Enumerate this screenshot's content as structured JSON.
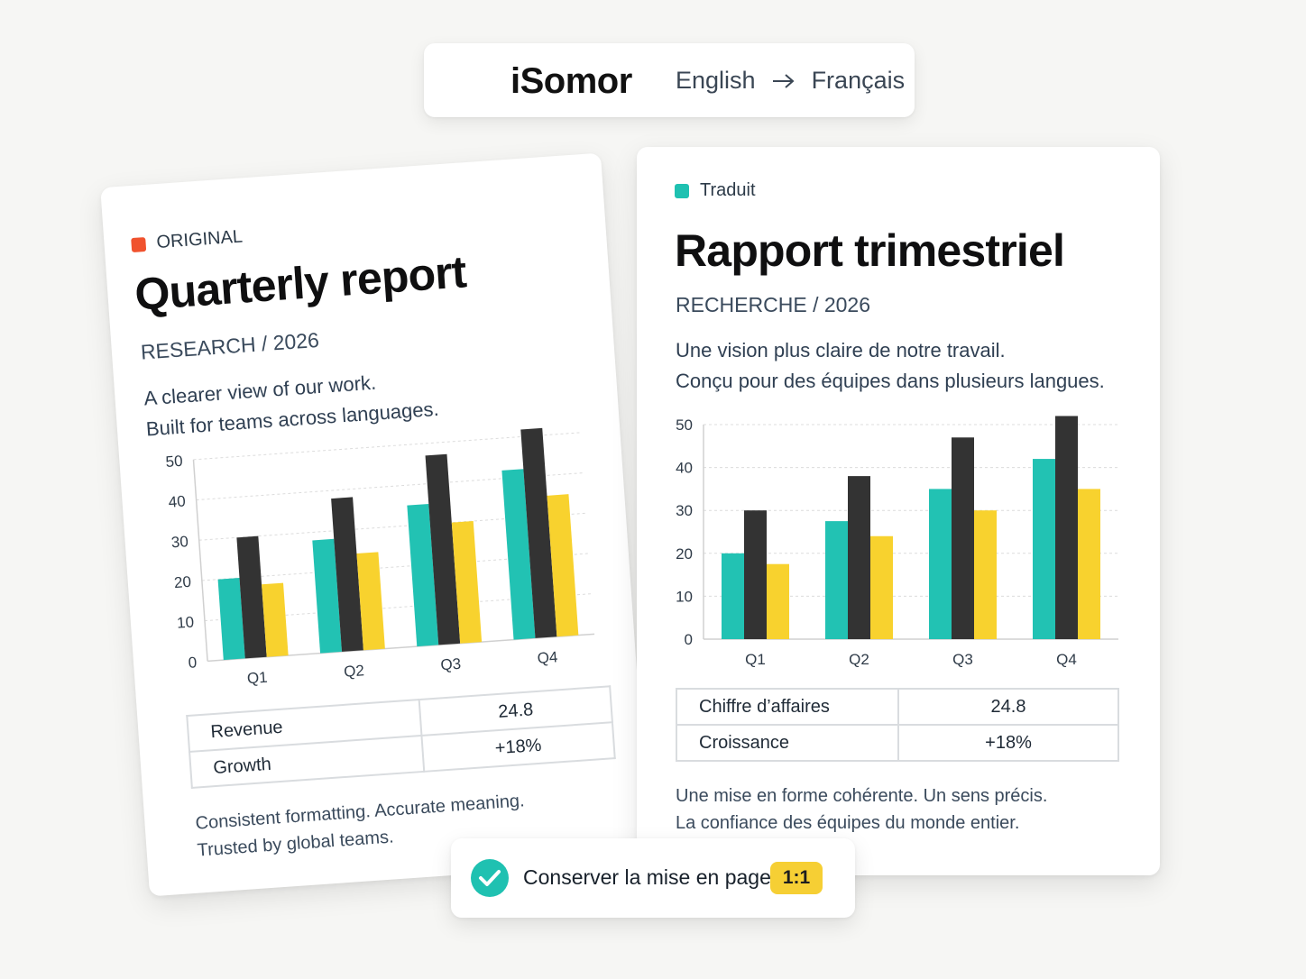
{
  "header": {
    "brand": "iSomor",
    "source_language": "English",
    "target_language": "Français",
    "arrow_icon": "arrow-right-icon"
  },
  "colors": {
    "teal": "#22c2b3",
    "dark": "#333333",
    "yellow": "#f8d22e",
    "original_tag": "#f0522e",
    "translated_tag": "#1fc1b1"
  },
  "original": {
    "tag": "ORIGINAL",
    "title": "Quarterly report",
    "subtitle": "RESEARCH / 2026",
    "desc_line1": "A clearer view of our work.",
    "desc_line2": "Built for teams across languages.",
    "table": [
      {
        "label": "Revenue",
        "value": "24.8"
      },
      {
        "label": "Growth",
        "value": "+18%"
      }
    ],
    "foot_line1": "Consistent formatting. Accurate meaning.",
    "foot_line2": "Trusted by global teams."
  },
  "translated": {
    "tag": "Traduit",
    "title": "Rapport trimestriel",
    "subtitle": "RECHERCHE / 2026",
    "desc_line1": "Une vision plus claire de notre travail.",
    "desc_line2": "Conçu pour des équipes dans plusieurs langues.",
    "table": [
      {
        "label": "Chiffre d’affaires",
        "value": "24.8"
      },
      {
        "label": "Croissance",
        "value": "+18%"
      }
    ],
    "foot_line1": "Une mise en forme cohérente. Un sens précis.",
    "foot_line2": "La confiance des équipes du monde entier."
  },
  "keep_layout": {
    "label": "Conserver la mise en page",
    "ratio": "1:1",
    "check_icon": "check-circle-icon"
  },
  "chart_data": [
    {
      "type": "bar",
      "categories": [
        "Q1",
        "Q2",
        "Q3",
        "Q4"
      ],
      "series": [
        {
          "values": [
            20,
            28,
            35,
            42
          ]
        },
        {
          "values": [
            30,
            38,
            47,
            52
          ]
        },
        {
          "values": [
            18,
            24,
            30,
            35
          ]
        }
      ],
      "ylim": [
        0,
        50
      ],
      "yticks": [
        0,
        10,
        20,
        30,
        40,
        50
      ],
      "grid": true
    },
    {
      "type": "bar",
      "categories": [
        "Q1",
        "Q2",
        "Q3",
        "Q4"
      ],
      "series": [
        {
          "values": [
            20,
            27.5,
            35,
            42
          ]
        },
        {
          "values": [
            30,
            38,
            47,
            52
          ]
        },
        {
          "values": [
            17.5,
            24,
            30,
            35
          ]
        }
      ],
      "ylim": [
        0,
        50
      ],
      "yticks": [
        0,
        10,
        20,
        30,
        40,
        50
      ],
      "grid": true
    }
  ]
}
